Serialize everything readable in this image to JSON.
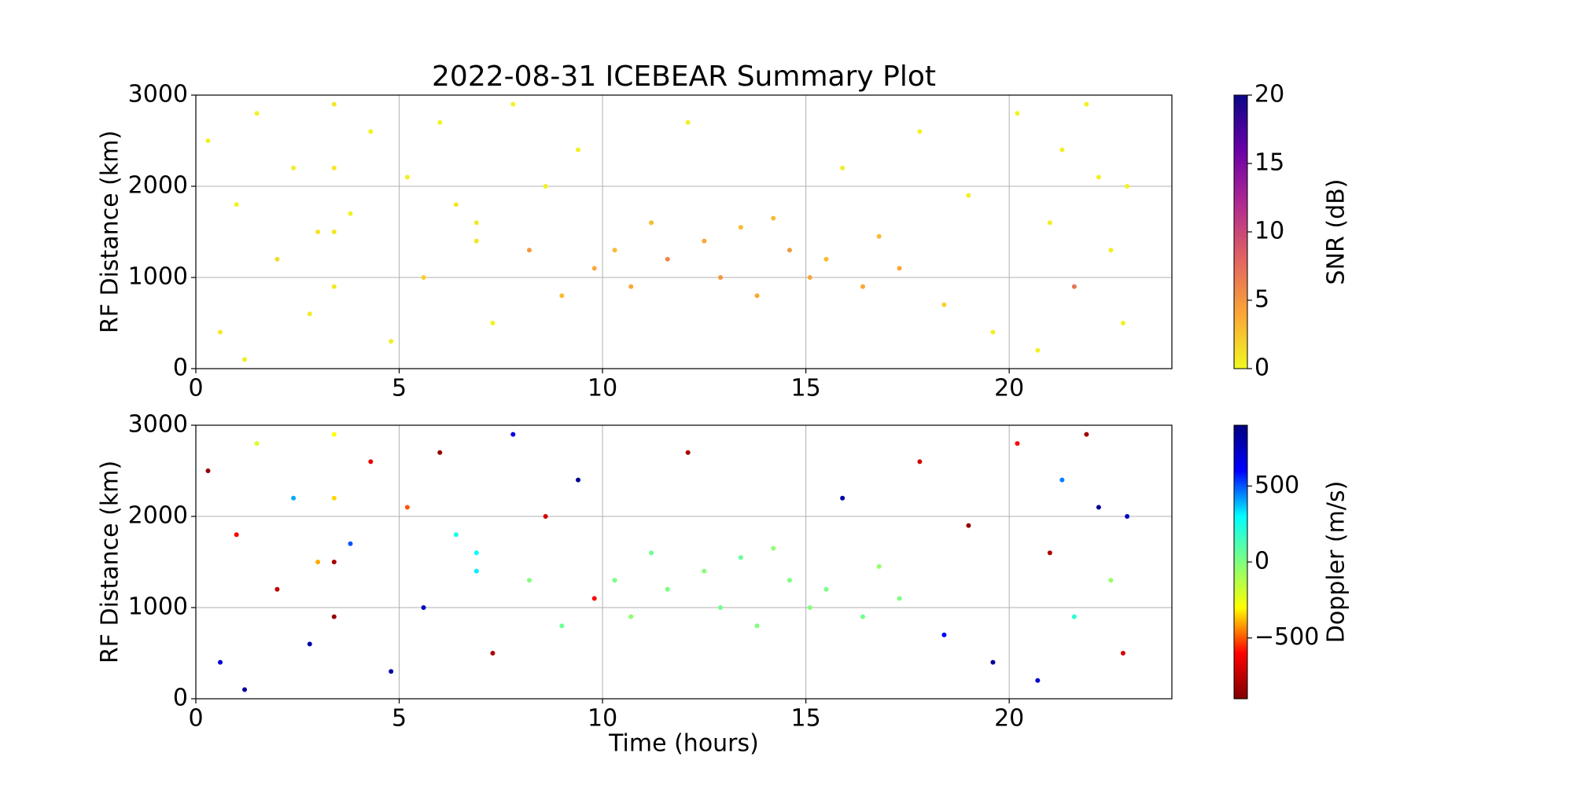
{
  "chart_data": [
    {
      "type": "scatter",
      "title": "2022-08-31 ICEBEAR Summary Plot",
      "ylabel": "RF Distance (km)",
      "xlim": [
        0,
        24
      ],
      "xticks": [
        0,
        5,
        10,
        15,
        20
      ],
      "ylim": [
        0,
        3000
      ],
      "yticks": [
        0,
        1000,
        2000,
        3000
      ],
      "grid": true,
      "colorbar_label": "SNR (dB)",
      "clim": [
        0,
        20
      ],
      "cticks": [
        0,
        5,
        10,
        15,
        20
      ],
      "colormap": [
        "#f0f921",
        "#fca636",
        "#e16462",
        "#b12a90",
        "#6a00a8",
        "#0d0887"
      ],
      "x": [
        0.3,
        0.6,
        1.0,
        1.2,
        1.5,
        2.0,
        2.4,
        2.8,
        3.0,
        3.4,
        3.4,
        3.4,
        3.4,
        3.8,
        4.3,
        4.8,
        5.2,
        5.6,
        6.0,
        6.4,
        6.9,
        6.9,
        7.3,
        7.8,
        8.2,
        8.6,
        9.0,
        9.4,
        9.8,
        10.3,
        10.7,
        11.2,
        11.6,
        12.1,
        12.5,
        12.9,
        13.4,
        13.8,
        14.2,
        14.6,
        15.1,
        15.5,
        15.9,
        16.4,
        16.8,
        17.3,
        17.8,
        18.4,
        19.0,
        19.6,
        20.2,
        20.7,
        21.0,
        21.3,
        21.6,
        21.9,
        22.2,
        22.5,
        22.8,
        22.9
      ],
      "y": [
        2500,
        400,
        1800,
        100,
        2800,
        1200,
        2200,
        600,
        1500,
        2900,
        2200,
        1500,
        900,
        1700,
        2600,
        300,
        2100,
        1000,
        2700,
        1800,
        1600,
        1400,
        500,
        2900,
        1300,
        2000,
        800,
        2400,
        1100,
        1300,
        900,
        1600,
        1200,
        2700,
        1400,
        1000,
        1550,
        800,
        1650,
        1300,
        1000,
        1200,
        2200,
        900,
        1450,
        1100,
        2600,
        700,
        1900,
        400,
        2800,
        200,
        1600,
        2400,
        900,
        2900,
        2100,
        1300,
        500,
        2000
      ],
      "c": [
        0.5,
        0.8,
        0.3,
        0.6,
        0.4,
        1.5,
        0.5,
        0.7,
        1,
        0.8,
        0.8,
        0.8,
        0.9,
        0.4,
        0.3,
        0.6,
        0.5,
        2,
        0.3,
        0.8,
        0.9,
        1,
        0.4,
        0.3,
        5,
        0.5,
        3,
        0.4,
        4,
        3,
        4,
        3,
        6,
        0.5,
        4,
        5,
        3,
        4,
        3,
        5,
        4,
        3,
        0.6,
        4,
        3,
        4,
        0.4,
        2,
        0.5,
        0.4,
        0.3,
        0.5,
        0.6,
        0.5,
        7,
        0.4,
        0.5,
        0.6,
        0.5,
        0.4
      ]
    },
    {
      "type": "scatter",
      "xlabel": "Time (hours)",
      "ylabel": "RF Distance (km)",
      "xlim": [
        0,
        24
      ],
      "xticks": [
        0,
        5,
        10,
        15,
        20
      ],
      "ylim": [
        0,
        3000
      ],
      "yticks": [
        0,
        1000,
        2000,
        3000
      ],
      "grid": true,
      "colorbar_label": "Doppler (m/s)",
      "clim": [
        -900,
        900
      ],
      "cticks": [
        {
          "value": -500,
          "label": "−500"
        },
        0,
        500
      ],
      "colormap": [
        "#7f0000",
        "#ff0000",
        "#ffff00",
        "#7fff7f",
        "#00ffff",
        "#0000ff",
        "#00007f"
      ],
      "x": [
        0.3,
        0.6,
        1.0,
        1.2,
        1.5,
        2.0,
        2.4,
        2.8,
        3.0,
        3.4,
        3.4,
        3.4,
        3.4,
        3.8,
        4.3,
        4.8,
        5.2,
        5.6,
        6.0,
        6.4,
        6.9,
        6.9,
        7.3,
        7.8,
        8.2,
        8.6,
        9.0,
        9.4,
        9.8,
        10.3,
        10.7,
        11.2,
        11.6,
        12.1,
        12.5,
        12.9,
        13.4,
        13.8,
        14.2,
        14.6,
        15.1,
        15.5,
        15.9,
        16.4,
        16.8,
        17.3,
        17.8,
        18.4,
        19.0,
        19.6,
        20.2,
        20.7,
        21.0,
        21.3,
        21.6,
        21.9,
        22.2,
        22.5,
        22.8,
        22.9
      ],
      "y": [
        2500,
        400,
        1800,
        100,
        2800,
        1200,
        2200,
        600,
        1500,
        2900,
        2200,
        1500,
        900,
        1700,
        2600,
        300,
        2100,
        1000,
        2700,
        1800,
        1600,
        1400,
        500,
        2900,
        1300,
        2000,
        800,
        2400,
        1100,
        1300,
        900,
        1600,
        1200,
        2700,
        1400,
        1000,
        1550,
        800,
        1650,
        1300,
        1000,
        1200,
        2200,
        900,
        1450,
        1100,
        2600,
        700,
        1900,
        400,
        2800,
        200,
        1600,
        2400,
        900,
        2900,
        2100,
        1300,
        500,
        2000
      ],
      "c": [
        -850,
        700,
        -600,
        850,
        -200,
        -750,
        400,
        800,
        -400,
        -300,
        -350,
        -800,
        -850,
        500,
        -650,
        800,
        -500,
        750,
        -850,
        250,
        300,
        320,
        -800,
        650,
        0,
        -700,
        50,
        850,
        -600,
        20,
        -30,
        40,
        10,
        -800,
        -20,
        30,
        60,
        0,
        -40,
        10,
        -10,
        20,
        800,
        30,
        -50,
        10,
        -700,
        600,
        -850,
        850,
        -600,
        700,
        -800,
        450,
        200,
        -820,
        850,
        -50,
        -700,
        750
      ]
    }
  ]
}
